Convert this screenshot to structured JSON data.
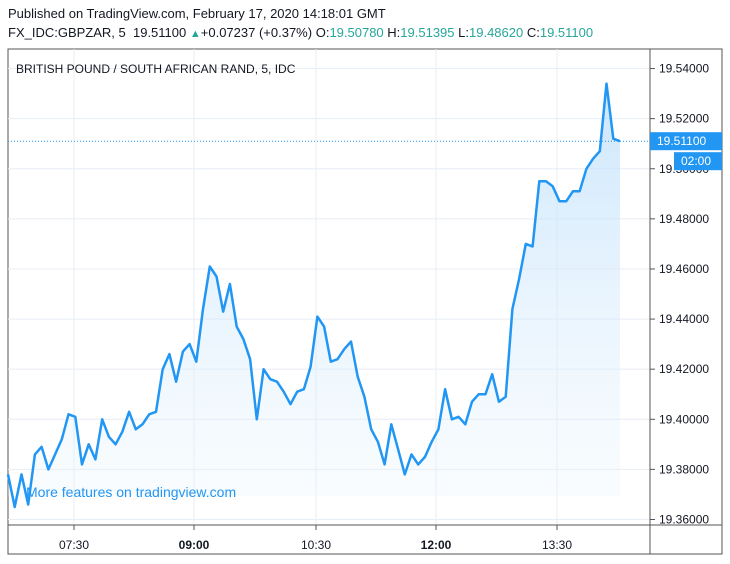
{
  "header": {
    "published": "Published on TradingView.com, February 17, 2020 14:18:01 GMT",
    "symbol": "FX_IDC:GBPZAR, 5",
    "last": "19.51100",
    "change_arrow": "▲",
    "change": "+0.07237 (+0.37%)",
    "o_label": "O:",
    "o_value": "19.50780",
    "h_label": "H:",
    "h_value": "19.51395",
    "l_label": "L:",
    "l_value": "19.48620",
    "c_label": "C:",
    "c_value": "19.51100"
  },
  "watermark": "More features on tradingview.com",
  "current_price_label": "19.51100",
  "countdown_label": "02:00",
  "colors": {
    "line": "#2196f3",
    "fill_top": "#bbdefb",
    "up": "#26a69a",
    "grid": "#e8eef5",
    "axis": "#555555"
  },
  "chart_data": {
    "type": "area",
    "title": "BRITISH POUND / SOUTH AFRICAN RAND, 5, IDC",
    "xlabel": "",
    "ylabel": "",
    "x_ticks": [
      {
        "label": "07:30",
        "bold": false
      },
      {
        "label": "09:00",
        "bold": true
      },
      {
        "label": "10:30",
        "bold": false
      },
      {
        "label": "12:00",
        "bold": true
      },
      {
        "label": "13:30",
        "bold": false
      }
    ],
    "y_ticks": [
      "19.36000",
      "19.38000",
      "19.40000",
      "19.42000",
      "19.44000",
      "19.46000",
      "19.48000",
      "19.50000",
      "19.52000",
      "19.54000"
    ],
    "ylim": [
      19.3578,
      19.5478
    ],
    "grid": true,
    "current_value": 19.511,
    "series": [
      {
        "values": [
          19.378,
          19.365,
          19.378,
          19.366,
          19.386,
          19.389,
          19.38,
          19.386,
          19.392,
          19.402,
          19.401,
          19.382,
          19.39,
          19.384,
          19.4,
          19.393,
          19.39,
          19.395,
          19.403,
          19.396,
          19.398,
          19.402,
          19.403,
          19.42,
          19.426,
          19.415,
          19.427,
          19.43,
          19.423,
          19.444,
          19.461,
          19.457,
          19.443,
          19.454,
          19.437,
          19.432,
          19.424,
          19.4,
          19.42,
          19.416,
          19.415,
          19.411,
          19.406,
          19.411,
          19.412,
          19.421,
          19.441,
          19.437,
          19.423,
          19.424,
          19.428,
          19.431,
          19.417,
          19.409,
          19.396,
          19.391,
          19.382,
          19.398,
          19.388,
          19.378,
          19.386,
          19.382,
          19.385,
          19.391,
          19.396,
          19.412,
          19.4,
          19.401,
          19.398,
          19.407,
          19.41,
          19.41,
          19.418,
          19.407,
          19.409,
          19.444,
          19.456,
          19.47,
          19.469,
          19.495,
          19.495,
          19.493,
          19.487,
          19.487,
          19.491,
          19.491,
          19.5,
          19.504,
          19.507,
          19.534,
          19.512,
          19.511
        ]
      }
    ]
  }
}
